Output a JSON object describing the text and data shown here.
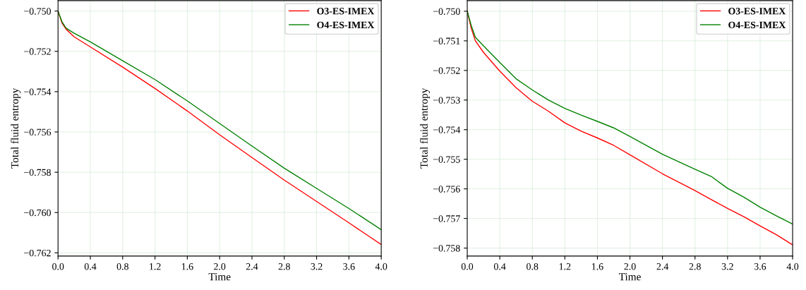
{
  "chart_data": [
    {
      "type": "line",
      "xlabel": "Time",
      "ylabel": "Total fluid entropy",
      "grid": true,
      "legend": "top right",
      "x": [
        0,
        0.05,
        0.1,
        0.2,
        0.4,
        0.8,
        1.2,
        1.6,
        2.0,
        2.4,
        2.8,
        3.2,
        3.6,
        4.0
      ],
      "series": [
        {
          "name": "O3-ES-IMEX",
          "color": "#ff0000",
          "values": [
            -0.75,
            -0.7506,
            -0.7509,
            -0.75128,
            -0.75178,
            -0.75278,
            -0.75384,
            -0.75496,
            -0.75614,
            -0.75727,
            -0.75839,
            -0.75945,
            -0.76051,
            -0.76159
          ]
        },
        {
          "name": "O4-ES-IMEX",
          "color": "#008000",
          "values": [
            -0.75,
            -0.75054,
            -0.75085,
            -0.7511,
            -0.75153,
            -0.75247,
            -0.7534,
            -0.75446,
            -0.75558,
            -0.7567,
            -0.7578,
            -0.7588,
            -0.7598,
            -0.76085
          ]
        }
      ],
      "xlim": [
        0,
        4
      ],
      "ylim": [
        -0.76216,
        -0.74948
      ],
      "xticks": [
        {
          "value": 0,
          "label": "0.0"
        },
        0.4,
        0.8,
        1.2,
        1.6,
        {
          "value": 2,
          "label": "2.0"
        },
        2.4,
        2.8,
        3.2,
        3.6,
        {
          "value": 4,
          "label": "4.0"
        }
      ],
      "yticks": [
        {
          "value": -0.762,
          "label": "−0.762"
        },
        {
          "value": -0.76,
          "label": "−0.760"
        },
        {
          "value": -0.758,
          "label": "−0.758"
        },
        {
          "value": -0.756,
          "label": "−0.756"
        },
        {
          "value": -0.754,
          "label": "−0.754"
        },
        {
          "value": -0.752,
          "label": "−0.752"
        },
        {
          "value": -0.75,
          "label": "−0.750"
        }
      ]
    },
    {
      "type": "line",
      "xlabel": "Time",
      "ylabel": "Total fluid entropy",
      "grid": true,
      "legend": "top right",
      "x": [
        0,
        0.05,
        0.1,
        0.2,
        0.4,
        0.6,
        0.8,
        1.0,
        1.2,
        1.4,
        1.6,
        1.8,
        2.0,
        2.4,
        2.8,
        3.0,
        3.2,
        3.4,
        3.6,
        3.8,
        4.0
      ],
      "series": [
        {
          "name": "O3-ES-IMEX",
          "color": "#ff0000",
          "values": [
            -0.75,
            -0.75058,
            -0.751,
            -0.75139,
            -0.75202,
            -0.75258,
            -0.75304,
            -0.75338,
            -0.75377,
            -0.75405,
            -0.75428,
            -0.75453,
            -0.75485,
            -0.75549,
            -0.75606,
            -0.75636,
            -0.75666,
            -0.75694,
            -0.75725,
            -0.75755,
            -0.75789
          ]
        },
        {
          "name": "O4-ES-IMEX",
          "color": "#008000",
          "values": [
            -0.75,
            -0.75049,
            -0.75088,
            -0.75117,
            -0.75173,
            -0.75228,
            -0.75266,
            -0.753,
            -0.75328,
            -0.75351,
            -0.75372,
            -0.75394,
            -0.75423,
            -0.75483,
            -0.75534,
            -0.75558,
            -0.75598,
            -0.75628,
            -0.75662,
            -0.75691,
            -0.75719
          ]
        }
      ],
      "xlim": [
        0,
        4
      ],
      "ylim": [
        -0.75827,
        -0.74964
      ],
      "xticks": [
        {
          "value": 0,
          "label": "0.0"
        },
        0.4,
        0.8,
        1.2,
        1.6,
        {
          "value": 2,
          "label": "2.0"
        },
        2.4,
        2.8,
        3.2,
        3.6,
        {
          "value": 4,
          "label": "4.0"
        }
      ],
      "yticks": [
        {
          "value": -0.758,
          "label": "−0.758"
        },
        {
          "value": -0.757,
          "label": "−0.757"
        },
        {
          "value": -0.756,
          "label": "−0.756"
        },
        {
          "value": -0.755,
          "label": "−0.755"
        },
        {
          "value": -0.754,
          "label": "−0.754"
        },
        {
          "value": -0.753,
          "label": "−0.753"
        },
        {
          "value": -0.752,
          "label": "−0.752"
        },
        {
          "value": -0.751,
          "label": "−0.751"
        },
        {
          "value": -0.75,
          "label": "−0.750"
        }
      ]
    }
  ]
}
